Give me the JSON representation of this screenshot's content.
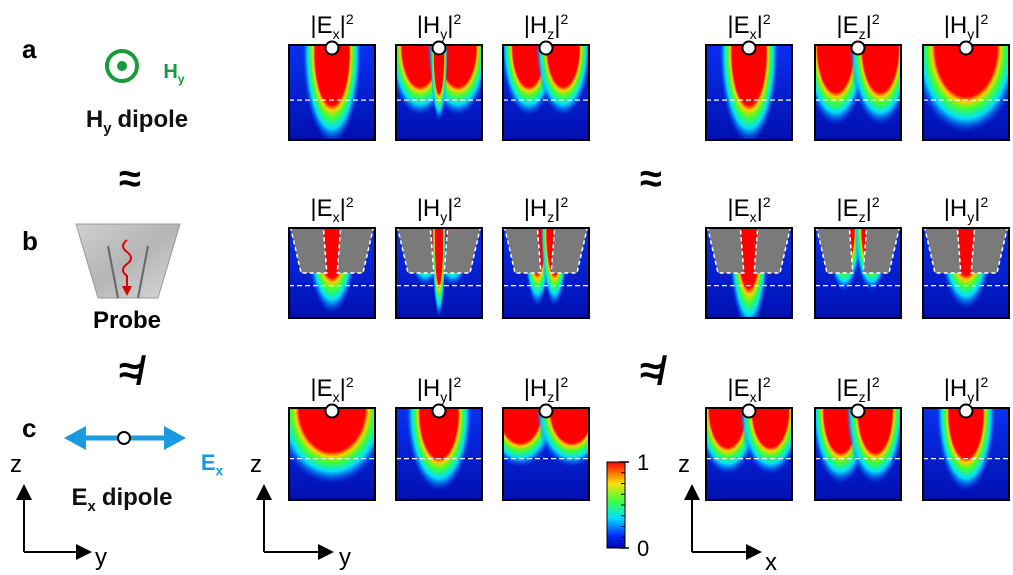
{
  "rows": [
    {
      "label": "a",
      "left": [
        {
          "open": "|E",
          "sub": "x",
          "close": "|",
          "sup": "2"
        },
        {
          "open": "|H",
          "sub": "y",
          "close": "|",
          "sup": "2"
        },
        {
          "open": "|H",
          "sub": "z",
          "close": "|",
          "sup": "2"
        }
      ],
      "right": [
        {
          "open": "|E",
          "sub": "x",
          "close": "|",
          "sup": "2"
        },
        {
          "open": "|E",
          "sub": "z",
          "close": "|",
          "sup": "2"
        },
        {
          "open": "|H",
          "sub": "y",
          "close": "|",
          "sup": "2"
        }
      ]
    },
    {
      "label": "b",
      "left": [
        {
          "open": "|E",
          "sub": "x",
          "close": "|",
          "sup": "2"
        },
        {
          "open": "|H",
          "sub": "y",
          "close": "|",
          "sup": "2"
        },
        {
          "open": "|H",
          "sub": "z",
          "close": "|",
          "sup": "2"
        }
      ],
      "right": [
        {
          "open": "|E",
          "sub": "x",
          "close": "|",
          "sup": "2"
        },
        {
          "open": "|E",
          "sub": "z",
          "close": "|",
          "sup": "2"
        },
        {
          "open": "|H",
          "sub": "y",
          "close": "|",
          "sup": "2"
        }
      ]
    },
    {
      "label": "c",
      "left": [
        {
          "open": "|E",
          "sub": "x",
          "close": "|",
          "sup": "2"
        },
        {
          "open": "|H",
          "sub": "y",
          "close": "|",
          "sup": "2"
        },
        {
          "open": "|H",
          "sub": "z",
          "close": "|",
          "sup": "2"
        }
      ],
      "right": [
        {
          "open": "|E",
          "sub": "x",
          "close": "|",
          "sup": "2"
        },
        {
          "open": "|E",
          "sub": "z",
          "close": "|",
          "sup": "2"
        },
        {
          "open": "|H",
          "sub": "y",
          "close": "|",
          "sup": "2"
        }
      ]
    }
  ],
  "sources": {
    "hy_symbol": {
      "main": "H",
      "sub": "y"
    },
    "hy_dipole": {
      "main": "H",
      "sub": "y",
      "tail": "dipole"
    },
    "probe": "Probe",
    "ex_symbol": {
      "main": "E",
      "sub": "x"
    },
    "ex_dipole": {
      "main": "E",
      "sub": "x",
      "tail": "dipole"
    }
  },
  "relations": {
    "approx_left": "≈",
    "not_approx_left": "≉",
    "approx_right": "≈",
    "not_approx_right": "≉"
  },
  "axes": [
    {
      "vertical": "z",
      "horizontal": "y"
    },
    {
      "vertical": "z",
      "horizontal": "y"
    },
    {
      "vertical": "z",
      "horizontal": "x"
    }
  ],
  "colorbar": {
    "lim": [
      0,
      1
    ],
    "ticks": [
      0,
      1
    ]
  }
}
